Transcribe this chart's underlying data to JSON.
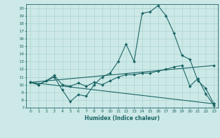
{
  "xlabel": "Humidex (Indice chaleur)",
  "bg_color": "#cce9e7",
  "line_color": "#1a6464",
  "grid_color": "#aad4d0",
  "xlim": [
    -0.5,
    23.5
  ],
  "ylim": [
    7,
    20.5
  ],
  "yticks": [
    7,
    8,
    9,
    10,
    11,
    12,
    13,
    14,
    15,
    16,
    17,
    18,
    19,
    20
  ],
  "xticks": [
    0,
    1,
    2,
    3,
    4,
    5,
    6,
    7,
    8,
    9,
    10,
    11,
    12,
    13,
    14,
    15,
    16,
    17,
    18,
    19,
    20,
    21,
    22,
    23
  ],
  "lines": [
    {
      "x": [
        0,
        1,
        2,
        3,
        4,
        5,
        6,
        7,
        8,
        9,
        10,
        11,
        12,
        13,
        14,
        15,
        16,
        17,
        18,
        19,
        20,
        21,
        22,
        23
      ],
      "y": [
        10.3,
        10.0,
        10.5,
        11.0,
        9.3,
        7.8,
        8.7,
        8.5,
        10.0,
        11.0,
        11.5,
        13.0,
        15.3,
        13.0,
        19.3,
        19.5,
        20.3,
        19.0,
        16.7,
        13.8,
        13.3,
        10.5,
        9.5,
        7.5
      ]
    },
    {
      "x": [
        0,
        1,
        2,
        3,
        4,
        5,
        6,
        7,
        8,
        9,
        10,
        11,
        12,
        13,
        14,
        15,
        16,
        17,
        18,
        19,
        20,
        21,
        22,
        23
      ],
      "y": [
        10.3,
        10.0,
        10.5,
        11.2,
        10.0,
        9.8,
        10.2,
        9.8,
        10.3,
        10.0,
        10.5,
        11.0,
        11.3,
        11.3,
        11.5,
        11.5,
        11.8,
        12.0,
        12.3,
        12.5,
        9.8,
        10.8,
        8.8,
        7.3
      ]
    },
    {
      "x": [
        0,
        23
      ],
      "y": [
        10.3,
        7.5
      ]
    },
    {
      "x": [
        0,
        23
      ],
      "y": [
        10.3,
        12.5
      ]
    }
  ]
}
